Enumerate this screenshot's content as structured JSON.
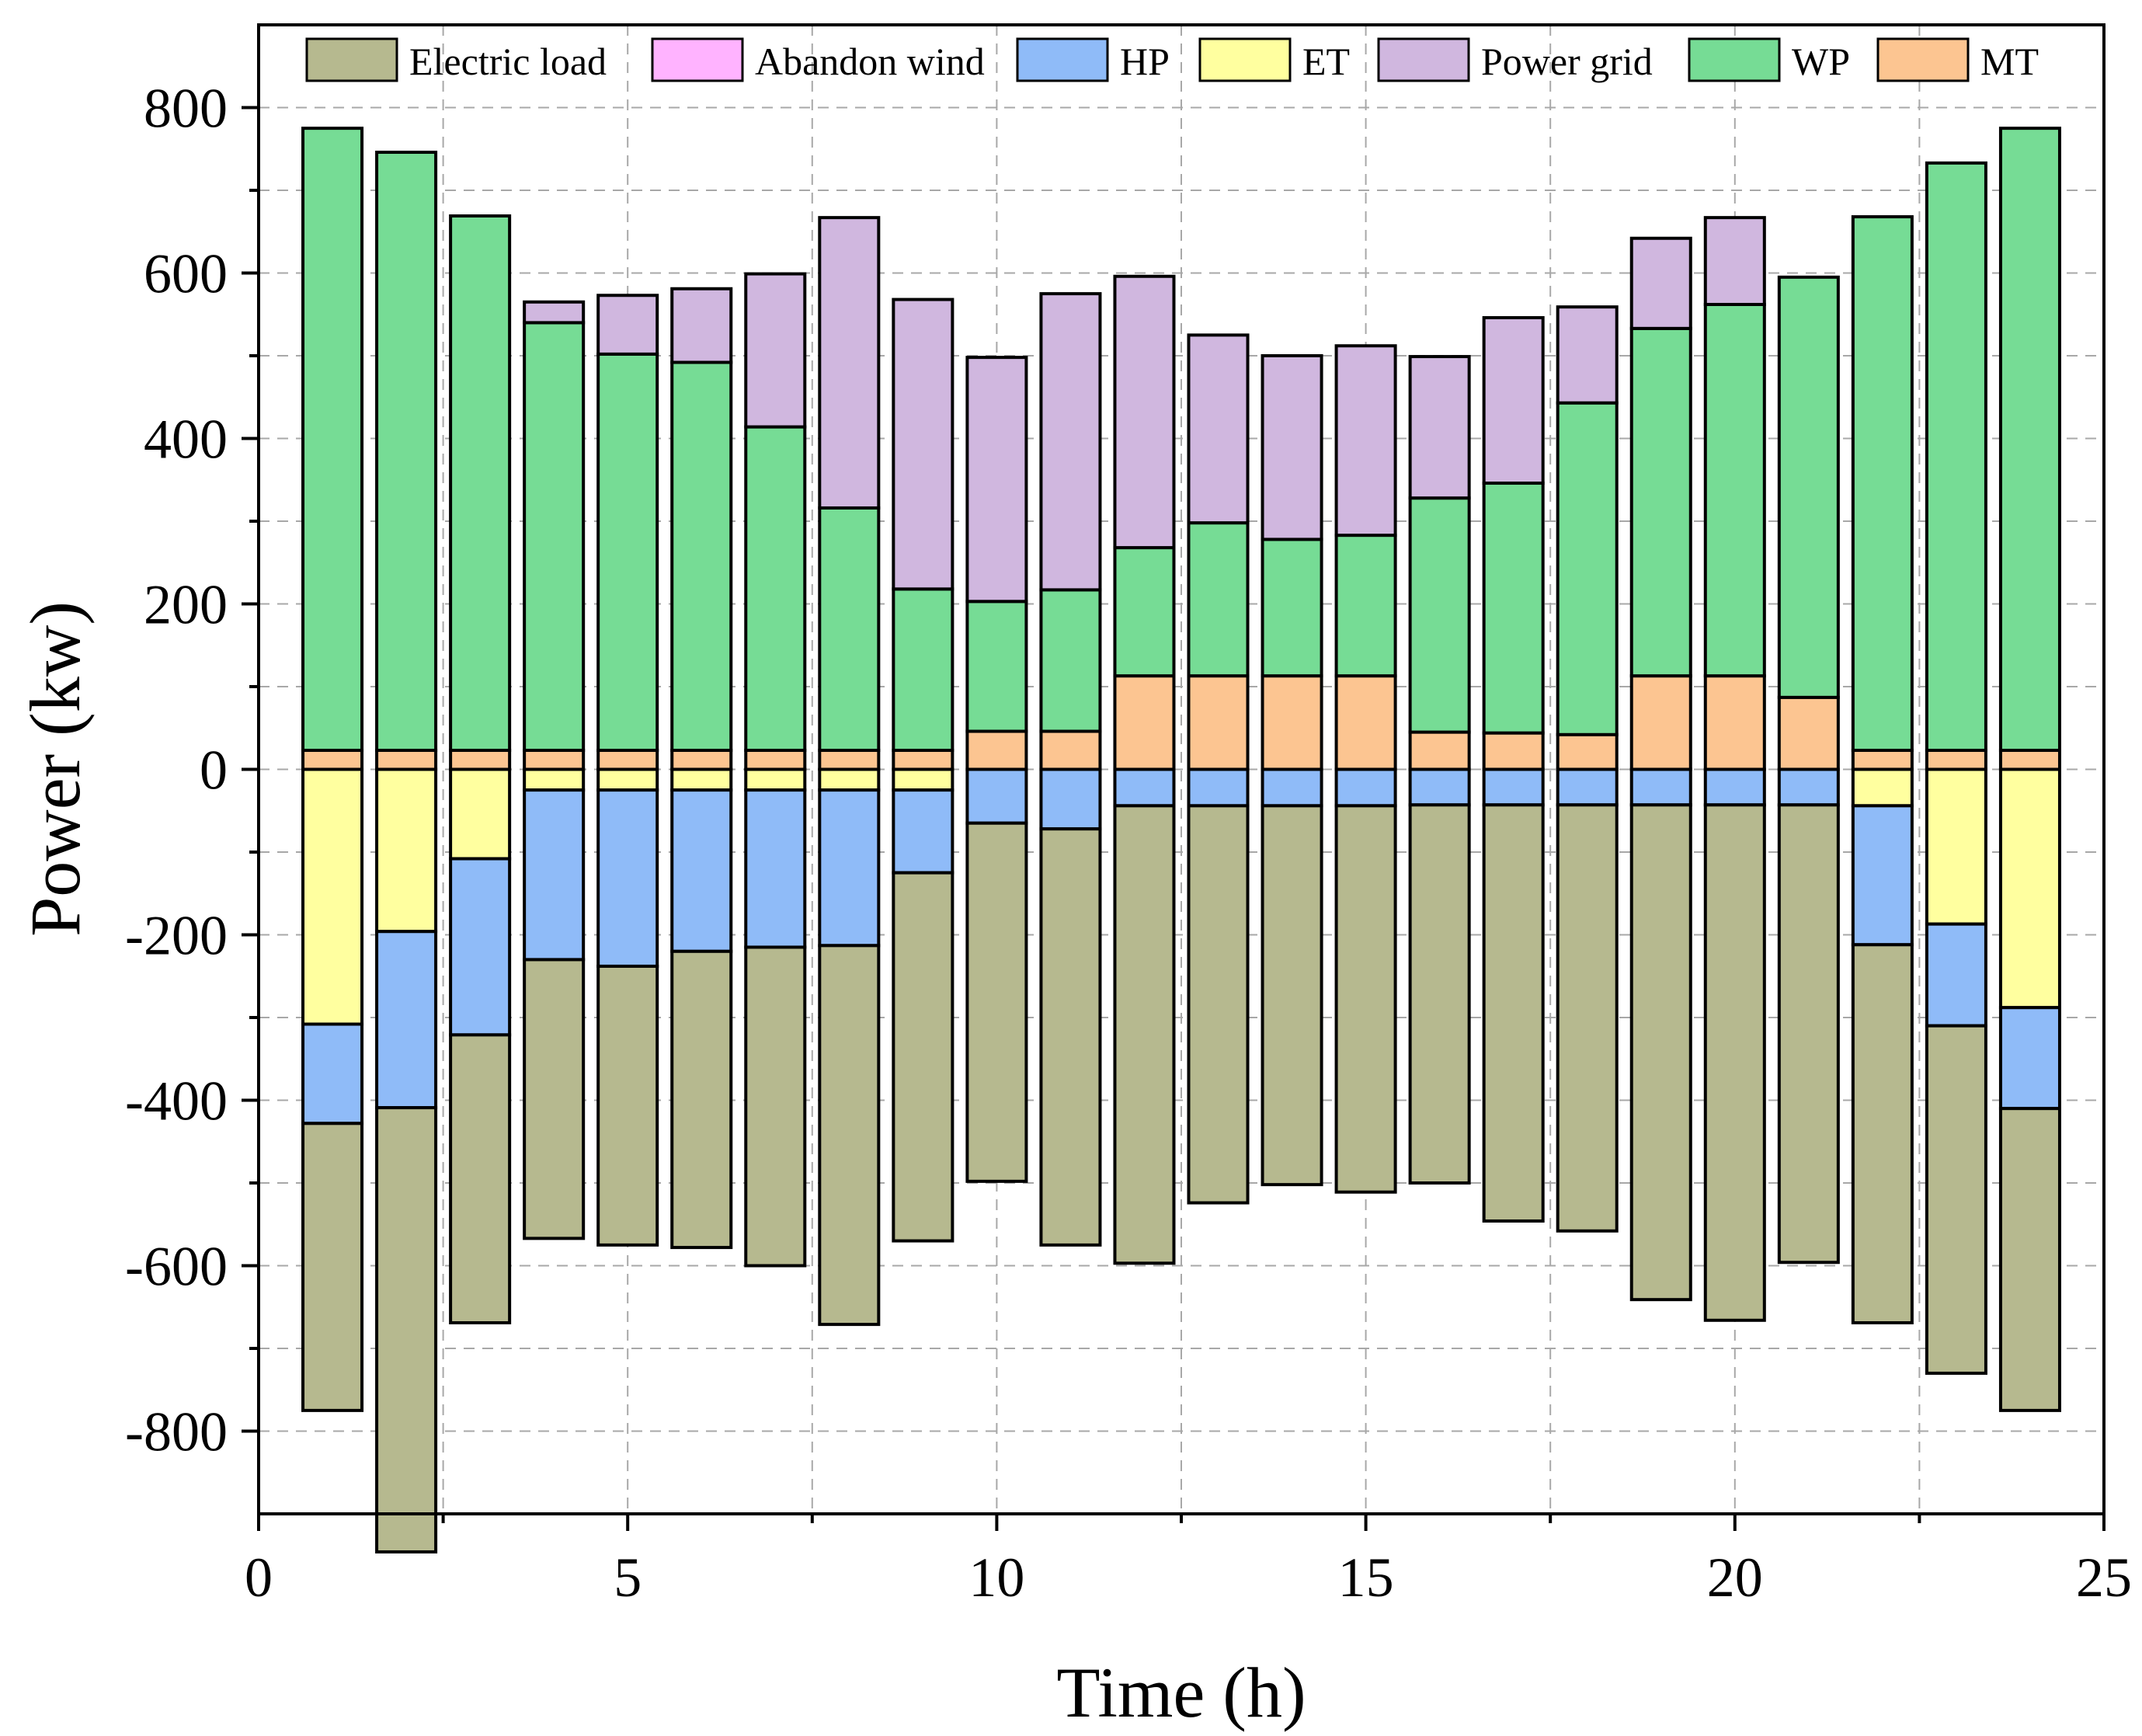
{
  "chart_data": {
    "type": "bar",
    "stacked": true,
    "title": "",
    "xlabel": "Time (h)",
    "ylabel": "Power (kw)",
    "xlim": [
      0,
      25
    ],
    "ylim": [
      -900,
      900
    ],
    "xticks": [
      0,
      5,
      10,
      15,
      20,
      25
    ],
    "yticks": [
      -800,
      -600,
      -400,
      -200,
      0,
      200,
      400,
      600,
      800
    ],
    "grid": true,
    "legend_position": "top",
    "x": [
      1,
      2,
      3,
      4,
      5,
      6,
      7,
      8,
      9,
      10,
      11,
      12,
      13,
      14,
      15,
      16,
      17,
      18,
      19,
      20,
      21,
      22,
      23,
      24
    ],
    "series": [
      {
        "name": "Electric load",
        "color": "#b6b98f",
        "values": [
          -347,
          -537,
          -348,
          -337,
          -337,
          -358,
          -385,
          -458,
          -445,
          -433,
          -503,
          -553,
          -480,
          -458,
          -467,
          -457,
          -503,
          -515,
          -598,
          -623,
          -553,
          -457,
          -420,
          -365
        ]
      },
      {
        "name": "Abandon wind",
        "color": "#ffb3ff",
        "values": [
          0,
          0,
          0,
          0,
          0,
          0,
          0,
          0,
          0,
          0,
          0,
          0,
          0,
          0,
          0,
          0,
          0,
          0,
          0,
          0,
          0,
          0,
          0,
          0
        ]
      },
      {
        "name": "HP",
        "color": "#8fbbf8",
        "values": [
          -120,
          -213,
          -213,
          -205,
          -213,
          -195,
          -190,
          -188,
          -100,
          -65,
          -72,
          -44,
          -44,
          -44,
          -44,
          -43,
          -43,
          -43,
          -43,
          -43,
          -43,
          -168,
          -123,
          -122
        ]
      },
      {
        "name": "ET",
        "color": "#ffff9f",
        "values": [
          -308,
          -196,
          -108,
          -25,
          -25,
          -25,
          -25,
          -25,
          -25,
          0,
          0,
          0,
          0,
          0,
          0,
          0,
          0,
          0,
          0,
          0,
          0,
          -44,
          -187,
          -288
        ]
      },
      {
        "name": "Power grid",
        "color": "#d0b7df",
        "values": [
          0,
          0,
          0,
          25,
          71,
          89,
          185,
          351,
          350,
          295,
          358,
          328,
          227,
          222,
          229,
          171,
          200,
          116,
          109,
          105,
          0,
          0,
          0,
          0
        ]
      },
      {
        "name": "WP",
        "color": "#76dc95",
        "values": [
          752,
          723,
          646,
          517,
          479,
          469,
          391,
          293,
          195,
          157,
          171,
          155,
          185,
          165,
          170,
          283,
          302,
          401,
          420,
          449,
          508,
          645,
          710,
          752
        ]
      },
      {
        "name": "MT",
        "color": "#fcc591",
        "values": [
          23,
          23,
          23,
          23,
          23,
          23,
          23,
          23,
          23,
          46,
          46,
          113,
          113,
          113,
          113,
          45,
          44,
          42,
          113,
          113,
          87,
          23,
          23,
          23
        ]
      }
    ]
  }
}
